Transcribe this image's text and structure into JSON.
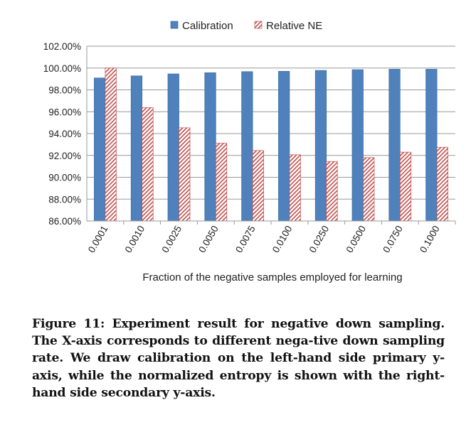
{
  "chart_data": {
    "type": "bar",
    "title": "",
    "xlabel": "Fraction of the negative samples employed for learning",
    "ylabel": "",
    "categories": [
      "0.0001",
      "0.0010",
      "0.0025",
      "0.0050",
      "0.0075",
      "0.0100",
      "0.0250",
      "0.0500",
      "0.0750",
      "0.1000"
    ],
    "series": [
      {
        "name": "Calibration",
        "color": "#4f81bd",
        "pattern": "solid",
        "values": [
          99.09,
          99.28,
          99.46,
          99.57,
          99.67,
          99.7,
          99.78,
          99.85,
          99.89,
          99.89
        ]
      },
      {
        "name": "Relative NE",
        "color": "#c0504d",
        "pattern": "diagonal-hatch",
        "values": [
          100.0,
          96.38,
          94.53,
          93.12,
          92.45,
          92.06,
          91.45,
          91.8,
          92.3,
          92.75
        ]
      }
    ],
    "ylim": [
      86,
      102
    ],
    "yticks": [
      "86.00%",
      "88.00%",
      "90.00%",
      "92.00%",
      "94.00%",
      "96.00%",
      "98.00%",
      "100.00%",
      "102.00%"
    ],
    "grid": true,
    "legend": "top-center"
  },
  "caption": {
    "label": "Figure 11:",
    "text": "Experiment result for negative down sampling. The X-axis corresponds to different nega-tive down sampling rate. We draw calibration on the left-hand side primary y-axis, while the normalized entropy is shown with the right-hand side secondary y-axis."
  }
}
